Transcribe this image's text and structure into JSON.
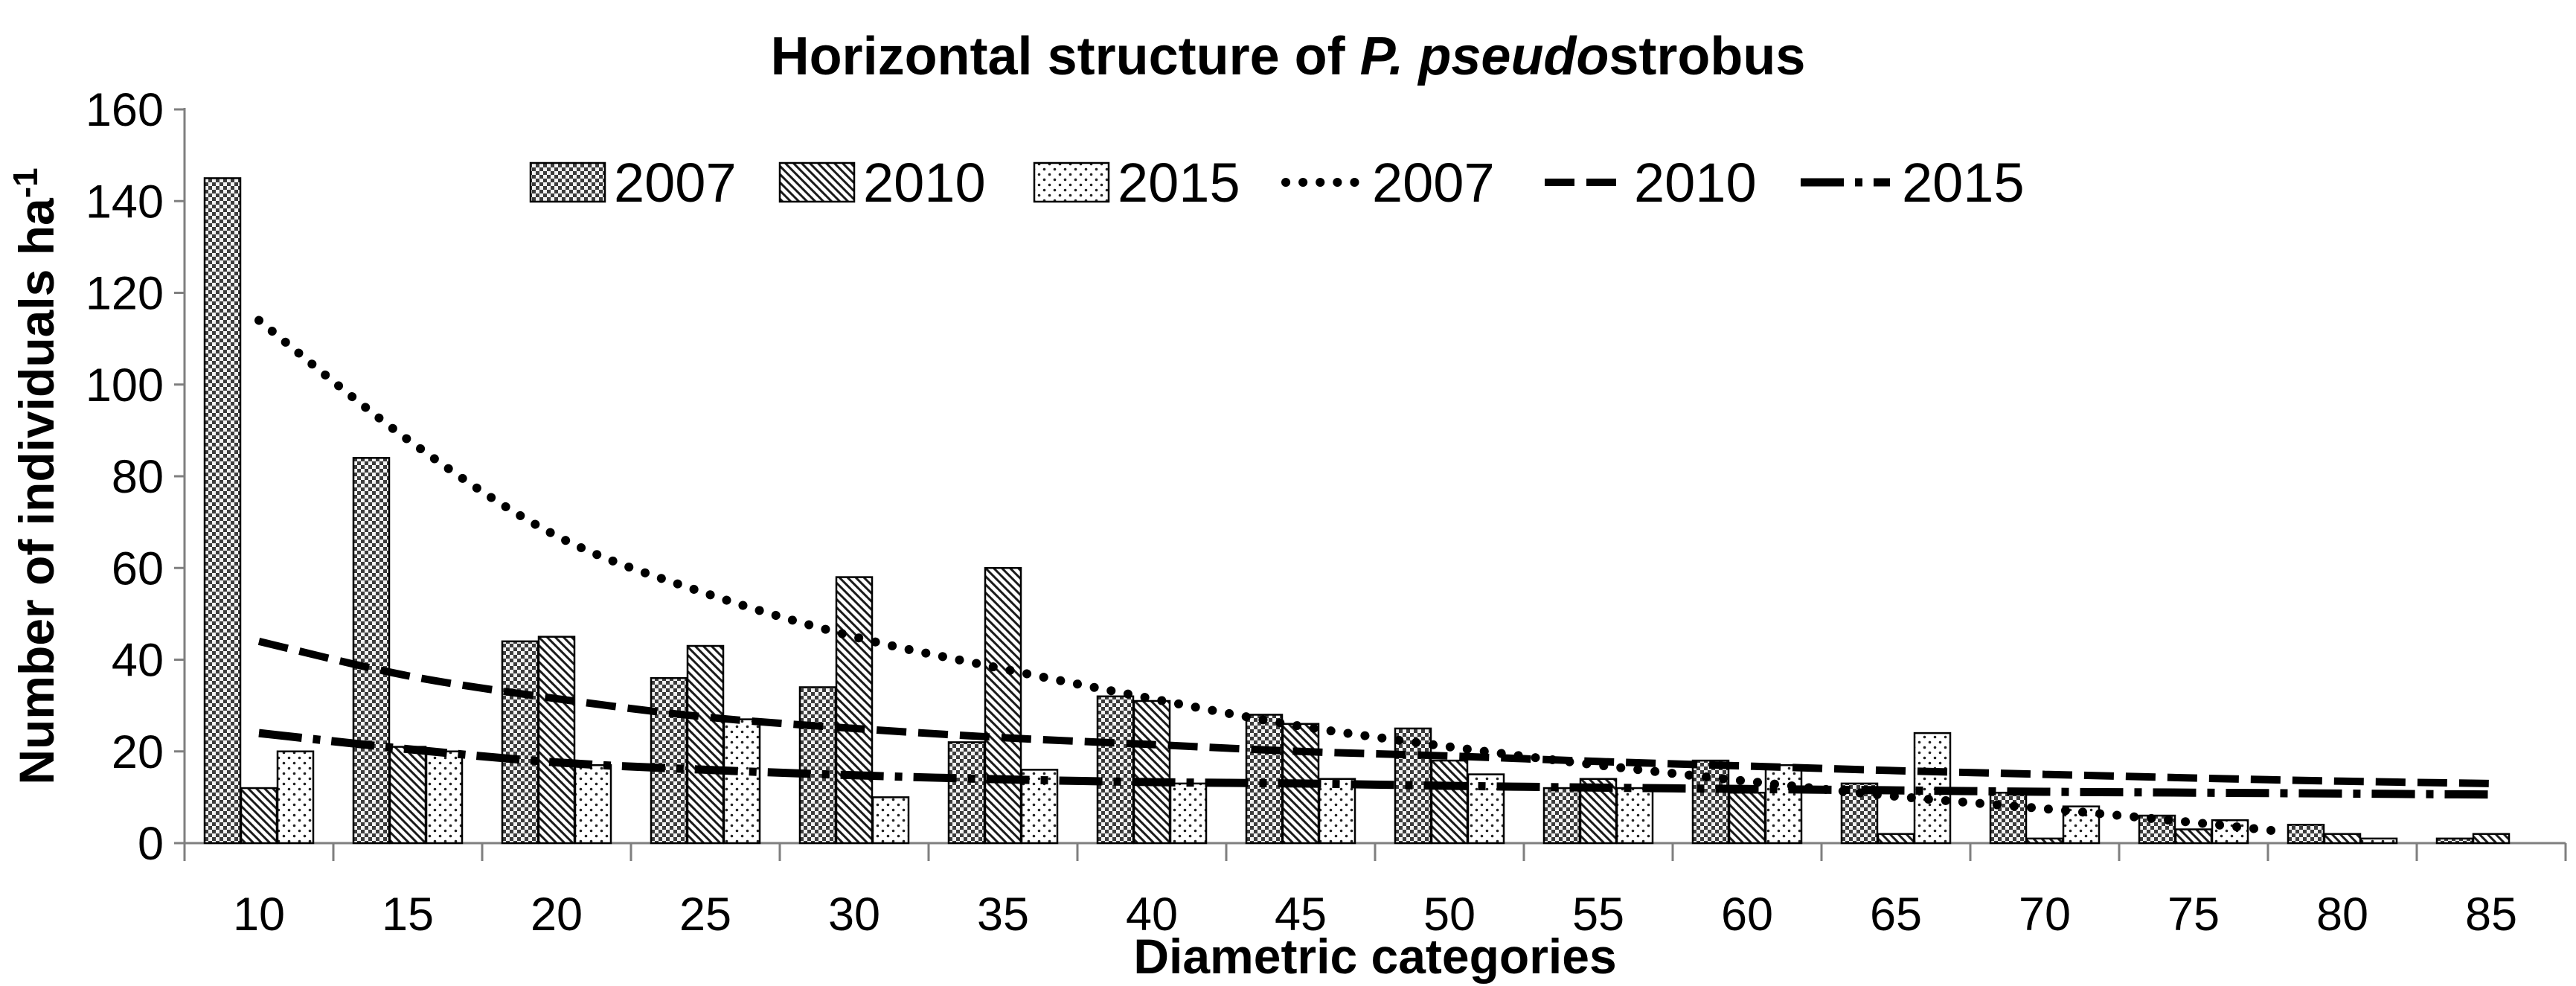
{
  "title_parts": {
    "prefix": "Horizontal structure of ",
    "italic": "P. pseudo",
    "suffix": "strobus"
  },
  "axes": {
    "y_label_main": "Number of individuals ha",
    "y_label_sup": "-1",
    "x_label": "Diametric categories",
    "y_ticks": [
      0,
      20,
      40,
      60,
      80,
      100,
      120,
      140,
      160
    ],
    "y_max": 160
  },
  "legend": {
    "bar_items": [
      {
        "label": "2007",
        "pattern": "checker"
      },
      {
        "label": "2010",
        "pattern": "diagonal"
      },
      {
        "label": "2015",
        "pattern": "dots"
      }
    ],
    "line_items": [
      {
        "label": "2007",
        "style": "dotted"
      },
      {
        "label": "2010",
        "style": "dashed"
      },
      {
        "label": "2015",
        "style": "dashdot"
      }
    ]
  },
  "chart_data": {
    "type": "bar",
    "title": "Horizontal structure of P. pseudostrobus",
    "xlabel": "Diametric categories",
    "ylabel": "Number of individuals ha-1",
    "ylim": [
      0,
      160
    ],
    "grid": false,
    "legend_position": "top",
    "categories": [
      10,
      15,
      20,
      25,
      30,
      35,
      40,
      45,
      50,
      55,
      60,
      65,
      70,
      75,
      80,
      85
    ],
    "series": [
      {
        "name": "2007",
        "pattern": "checker",
        "values": [
          145,
          84,
          44,
          36,
          34,
          22,
          32,
          28,
          25,
          12,
          18,
          13,
          11,
          6,
          4,
          1
        ]
      },
      {
        "name": "2010",
        "pattern": "diagonal",
        "values": [
          12,
          21,
          45,
          43,
          58,
          60,
          31,
          26,
          18,
          14,
          11,
          2,
          1,
          3,
          2,
          2
        ]
      },
      {
        "name": "2015",
        "pattern": "dots",
        "values": [
          20,
          20,
          17,
          27,
          10,
          16,
          13,
          14,
          15,
          12,
          17,
          24,
          8,
          5,
          1,
          0
        ]
      }
    ],
    "trendlines": [
      {
        "name": "2007",
        "style": "dotted",
        "points": [
          [
            10,
            114
          ],
          [
            15,
            88
          ],
          [
            20,
            67
          ],
          [
            25,
            54.5
          ],
          [
            30,
            45
          ],
          [
            35,
            38
          ],
          [
            40,
            31.5
          ],
          [
            45,
            25.5
          ],
          [
            50,
            21
          ],
          [
            55,
            17
          ],
          [
            60,
            13.5
          ],
          [
            65,
            10.2
          ],
          [
            70,
            7.5
          ],
          [
            75,
            4.5
          ],
          [
            78,
            2.5
          ]
        ]
      },
      {
        "name": "2010",
        "style": "dashed",
        "points": [
          [
            10,
            44
          ],
          [
            15,
            36.5
          ],
          [
            20,
            31.5
          ],
          [
            25,
            27.5
          ],
          [
            30,
            25
          ],
          [
            35,
            23
          ],
          [
            40,
            21.5
          ],
          [
            45,
            20
          ],
          [
            50,
            19
          ],
          [
            55,
            17.8
          ],
          [
            60,
            16.8
          ],
          [
            65,
            15.8
          ],
          [
            70,
            15
          ],
          [
            75,
            14.2
          ],
          [
            80,
            13.5
          ],
          [
            85,
            13
          ]
        ]
      },
      {
        "name": "2015",
        "style": "dashdot",
        "points": [
          [
            10,
            24
          ],
          [
            15,
            20.5
          ],
          [
            20,
            17.6
          ],
          [
            25,
            16
          ],
          [
            30,
            14.8
          ],
          [
            35,
            13.9
          ],
          [
            40,
            13.3
          ],
          [
            45,
            13
          ],
          [
            50,
            12.5
          ],
          [
            55,
            12.1
          ],
          [
            60,
            11.8
          ],
          [
            65,
            11.5
          ],
          [
            70,
            11.2
          ],
          [
            75,
            11
          ],
          [
            80,
            10.8
          ],
          [
            85,
            10.6
          ]
        ]
      }
    ]
  }
}
